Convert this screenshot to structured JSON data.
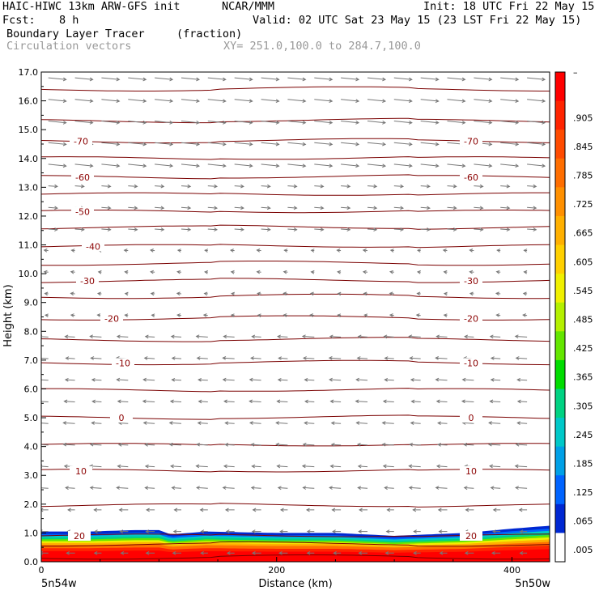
{
  "header": {
    "model": "HAIC-HIWC 13km ARW-GFS init",
    "org": "NCAR/MMM",
    "init": "Init: 18 UTC Fri 22 May 15",
    "fcst_label": "Fcst:",
    "fcst_value": "8 h",
    "valid": "Valid: 02 UTC Sat 23 May 15 (23 LST Fri 22 May 15)",
    "field": "Boundary Layer Tracer",
    "field_units": "(fraction)",
    "overlay": "Circulation vectors",
    "xy": "XY= 251.0,100.0 to 284.7,100.0"
  },
  "chart_data": {
    "type": "cross-section",
    "xlabel": "Distance (km)",
    "ylabel": "Height (km)",
    "xlim": [
      0,
      432
    ],
    "ylim": [
      0,
      17
    ],
    "x_ticks": [
      "0",
      "200",
      "400"
    ],
    "y_ticks": [
      "0.0",
      "1.0",
      "2.0",
      "3.0",
      "4.0",
      "5.0",
      "6.0",
      "7.0",
      "8.0",
      "9.0",
      "10.0",
      "11.0",
      "12.0",
      "13.0",
      "14.0",
      "15.0",
      "16.0",
      "17.0"
    ],
    "left_endpoint_label": "5n54w",
    "right_endpoint_label": "5n50w",
    "colorbar": {
      "labels": [
        "–",
        ".905",
        ".845",
        ".785",
        ".725",
        ".665",
        ".605",
        ".545",
        ".485",
        ".425",
        ".365",
        ".305",
        ".245",
        ".185",
        ".125",
        ".065",
        ".005"
      ],
      "colors": [
        "#ff0000",
        "#ff2400",
        "#ff4b00",
        "#ff6e00",
        "#ff9000",
        "#ffb000",
        "#ffd000",
        "#f0f000",
        "#b4f000",
        "#64e600",
        "#00dc00",
        "#00d282",
        "#00c8c8",
        "#00a0e6",
        "#0064ff",
        "#0028d2",
        "#ffffff"
      ]
    },
    "temperature_contours": {
      "label_color": "#8b0000",
      "levels": [
        20,
        10,
        0,
        -10,
        -20,
        -30,
        -40,
        -50,
        -60,
        -70
      ],
      "heights_km": [
        0.9,
        3.15,
        5.0,
        6.9,
        8.45,
        9.75,
        10.95,
        12.15,
        13.35,
        14.6
      ],
      "labels_left": [
        "20",
        "10",
        "0",
        "-10",
        "-20",
        "-30",
        "-40",
        "-50",
        "-60",
        "-70"
      ],
      "labels_right": [
        "20",
        "10",
        "0",
        "-10",
        "-20",
        "-30",
        "",
        "",
        "-60",
        "-70"
      ],
      "extra_contour_heights_km": [
        0.15,
        0.6,
        1.95,
        4.05,
        5.95,
        7.7,
        9.2,
        10.35,
        11.6,
        12.75,
        14.0,
        15.3,
        16.4
      ]
    },
    "boundary_layer_top_km": [
      1.05,
      1.05,
      1.1,
      1.1,
      0.95,
      1.05,
      1.0,
      1.0,
      0.9,
      1.0,
      1.15,
      1.25
    ],
    "boundary_layer_x_km": [
      0,
      40,
      80,
      100,
      110,
      140,
      200,
      250,
      300,
      360,
      400,
      432
    ],
    "vector_regimes": [
      {
        "z_min_km": 13.5,
        "z_max_km": 17.0,
        "u": 1.0,
        "v": -0.1
      },
      {
        "z_min_km": 11.0,
        "z_max_km": 13.5,
        "u": 0.7,
        "v": -0.05
      },
      {
        "z_min_km": 8.0,
        "z_max_km": 11.0,
        "u": -0.4,
        "v": 0.05
      },
      {
        "z_min_km": 2.0,
        "z_max_km": 8.0,
        "u": -0.8,
        "v": 0.05
      },
      {
        "z_min_km": 0.0,
        "z_max_km": 2.0,
        "u": -0.6,
        "v": 0.0
      }
    ]
  }
}
